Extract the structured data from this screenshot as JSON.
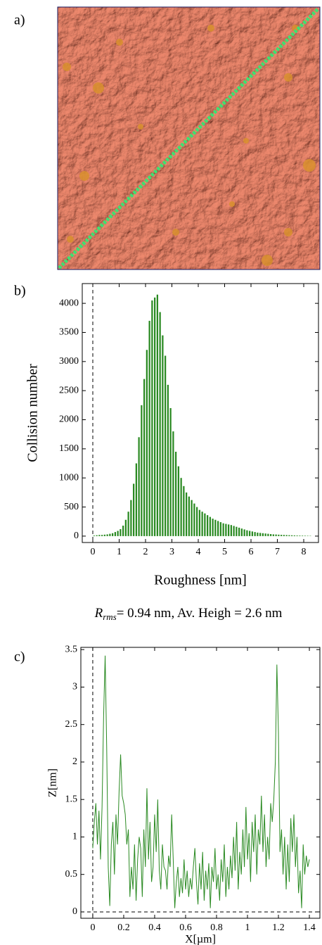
{
  "panel_a": {
    "label": "a)"
  },
  "chart_data": [
    {
      "type": "histogram",
      "label": "b)",
      "xlabel": "Roughness [nm]",
      "ylabel": "Collision number",
      "bins": [
        0,
        0.1,
        0.2,
        0.3,
        0.4,
        0.5,
        0.6,
        0.7,
        0.8,
        0.9,
        1.0,
        1.1,
        1.2,
        1.3,
        1.4,
        1.5,
        1.6,
        1.7,
        1.8,
        1.9,
        2.0,
        2.1,
        2.2,
        2.3,
        2.4,
        2.5,
        2.6,
        2.7,
        2.8,
        2.9,
        3.0,
        3.1,
        3.2,
        3.3,
        3.4,
        3.5,
        3.6,
        3.7,
        3.8,
        3.9,
        4.0,
        4.1,
        4.2,
        4.3,
        4.4,
        4.5,
        4.6,
        4.7,
        4.8,
        4.9,
        5.0,
        5.1,
        5.2,
        5.3,
        5.4,
        5.5,
        5.6,
        5.7,
        5.8,
        5.9,
        6.0,
        6.1,
        6.2,
        6.3,
        6.4,
        6.5,
        6.6,
        6.7,
        6.8,
        6.9,
        7.0,
        7.1,
        7.2,
        7.3,
        7.4,
        7.5,
        7.6,
        7.7,
        7.8,
        7.9,
        8.0,
        8.1,
        8.2,
        8.3
      ],
      "counts": [
        10,
        15,
        20,
        20,
        25,
        30,
        40,
        50,
        70,
        90,
        120,
        180,
        280,
        420,
        620,
        900,
        1250,
        1700,
        2250,
        2700,
        3200,
        3700,
        4050,
        4100,
        4150,
        3850,
        3450,
        3100,
        2600,
        2200,
        1800,
        1450,
        1200,
        1000,
        860,
        750,
        680,
        620,
        560,
        500,
        450,
        420,
        390,
        360,
        330,
        300,
        280,
        260,
        240,
        220,
        210,
        200,
        190,
        175,
        160,
        145,
        130,
        115,
        100,
        90,
        80,
        70,
        60,
        55,
        50,
        45,
        40,
        35,
        30,
        28,
        25,
        22,
        20,
        18,
        16,
        14,
        12,
        10,
        9,
        8,
        7,
        6,
        5
      ],
      "color": "#2a8a22",
      "xlim": [
        -0.4,
        8.56
      ],
      "ylim": [
        -110,
        4340
      ],
      "xticks": [
        0,
        1,
        2,
        3,
        4,
        5,
        6,
        7,
        8
      ],
      "yticks": [
        0,
        500,
        1000,
        1500,
        2000,
        2500,
        3000,
        3500,
        4000
      ],
      "vlines": [
        0
      ],
      "annotation": {
        "symbol": "R",
        "subscript": "rms",
        "text": "= 0.94 nm,  Av. Heigh = 2.6 nm"
      }
    },
    {
      "type": "line",
      "label": "c)",
      "xlabel": "X[µm]",
      "ylabel": "Z[nm]",
      "x": [
        0,
        0.01,
        0.02,
        0.03,
        0.04,
        0.05,
        0.06,
        0.07,
        0.08,
        0.09,
        0.1,
        0.11,
        0.12,
        0.13,
        0.14,
        0.15,
        0.16,
        0.17,
        0.18,
        0.19,
        0.2,
        0.21,
        0.22,
        0.23,
        0.24,
        0.25,
        0.26,
        0.27,
        0.28,
        0.29,
        0.3,
        0.31,
        0.32,
        0.33,
        0.34,
        0.35,
        0.36,
        0.37,
        0.38,
        0.39,
        0.4,
        0.41,
        0.42,
        0.43,
        0.44,
        0.45,
        0.46,
        0.47,
        0.48,
        0.49,
        0.5,
        0.51,
        0.52,
        0.53,
        0.54,
        0.55,
        0.56,
        0.57,
        0.58,
        0.59,
        0.6,
        0.61,
        0.62,
        0.63,
        0.64,
        0.65,
        0.66,
        0.67,
        0.68,
        0.69,
        0.7,
        0.71,
        0.72,
        0.73,
        0.74,
        0.75,
        0.76,
        0.77,
        0.78,
        0.79,
        0.8,
        0.81,
        0.82,
        0.83,
        0.84,
        0.85,
        0.86,
        0.87,
        0.88,
        0.89,
        0.9,
        0.91,
        0.92,
        0.93,
        0.94,
        0.95,
        0.96,
        0.97,
        0.98,
        0.99,
        1,
        1.01,
        1.02,
        1.03,
        1.04,
        1.05,
        1.06,
        1.07,
        1.08,
        1.09,
        1.1,
        1.11,
        1.12,
        1.13,
        1.14,
        1.15,
        1.16,
        1.17,
        1.18,
        1.19,
        1.2,
        1.21,
        1.22,
        1.23,
        1.24,
        1.25,
        1.26,
        1.27,
        1.28,
        1.29,
        1.3,
        1.31,
        1.32,
        1.33,
        1.34,
        1.35,
        1.36,
        1.37,
        1.38,
        1.39,
        1.4
      ],
      "values": [
        0.85,
        1.2,
        1.45,
        0.9,
        1.35,
        0.7,
        1.4,
        2.6,
        3.42,
        2.2,
        0.6,
        0.08,
        0.9,
        1.2,
        0.5,
        1.3,
        0.9,
        1.6,
        2.1,
        1.55,
        1.45,
        1.3,
        0.9,
        1.1,
        0.2,
        0.6,
        0.3,
        0.9,
        0.15,
        0.7,
        1.0,
        0.85,
        0.2,
        1.1,
        0.6,
        1.65,
        0.7,
        1.2,
        0.4,
        0.6,
        1.3,
        0.8,
        1.5,
        0.55,
        0.3,
        0.9,
        0.6,
        0.55,
        0.3,
        0.75,
        0.6,
        1.3,
        0.7,
        0.05,
        0.4,
        0.6,
        0.2,
        0.45,
        0.25,
        0.7,
        0.3,
        0.55,
        0.2,
        0.45,
        0.3,
        0.6,
        0.85,
        0.4,
        0.1,
        0.65,
        0.3,
        0.8,
        0.15,
        0.55,
        0.3,
        0.65,
        0.05,
        0.6,
        0.4,
        0.85,
        0.3,
        0.5,
        0.15,
        0.7,
        0.4,
        0.9,
        0.2,
        0.6,
        0.3,
        0.75,
        0.45,
        1.0,
        0.55,
        1.2,
        0.3,
        0.8,
        0.5,
        1.1,
        0.6,
        1.4,
        0.7,
        1.05,
        0.4,
        1.2,
        0.8,
        1.3,
        0.5,
        1.1,
        0.9,
        1.55,
        0.8,
        1.3,
        0.6,
        1.0,
        0.7,
        1.45,
        1.2,
        1.5,
        2.0,
        3.3,
        2.4,
        0.8,
        1.1,
        0.5,
        1.0,
        0.3,
        0.9,
        0.4,
        1.25,
        0.8,
        1.3,
        0.6,
        1.0,
        0.25,
        0.55,
        0.05,
        0.9,
        0.5,
        0.75,
        0.6,
        0.7
      ],
      "color": "#2a8a22",
      "xlim": [
        -0.077,
        1.468
      ],
      "ylim": [
        -0.085,
        3.53
      ],
      "xticks": [
        0,
        0.2,
        0.4,
        0.6,
        0.8,
        1,
        1.2,
        1.4
      ],
      "yticks": [
        0,
        0.5,
        1,
        1.5,
        2,
        2.5,
        3,
        3.5
      ],
      "vlines": [
        0
      ],
      "hlines": [
        0
      ]
    }
  ]
}
